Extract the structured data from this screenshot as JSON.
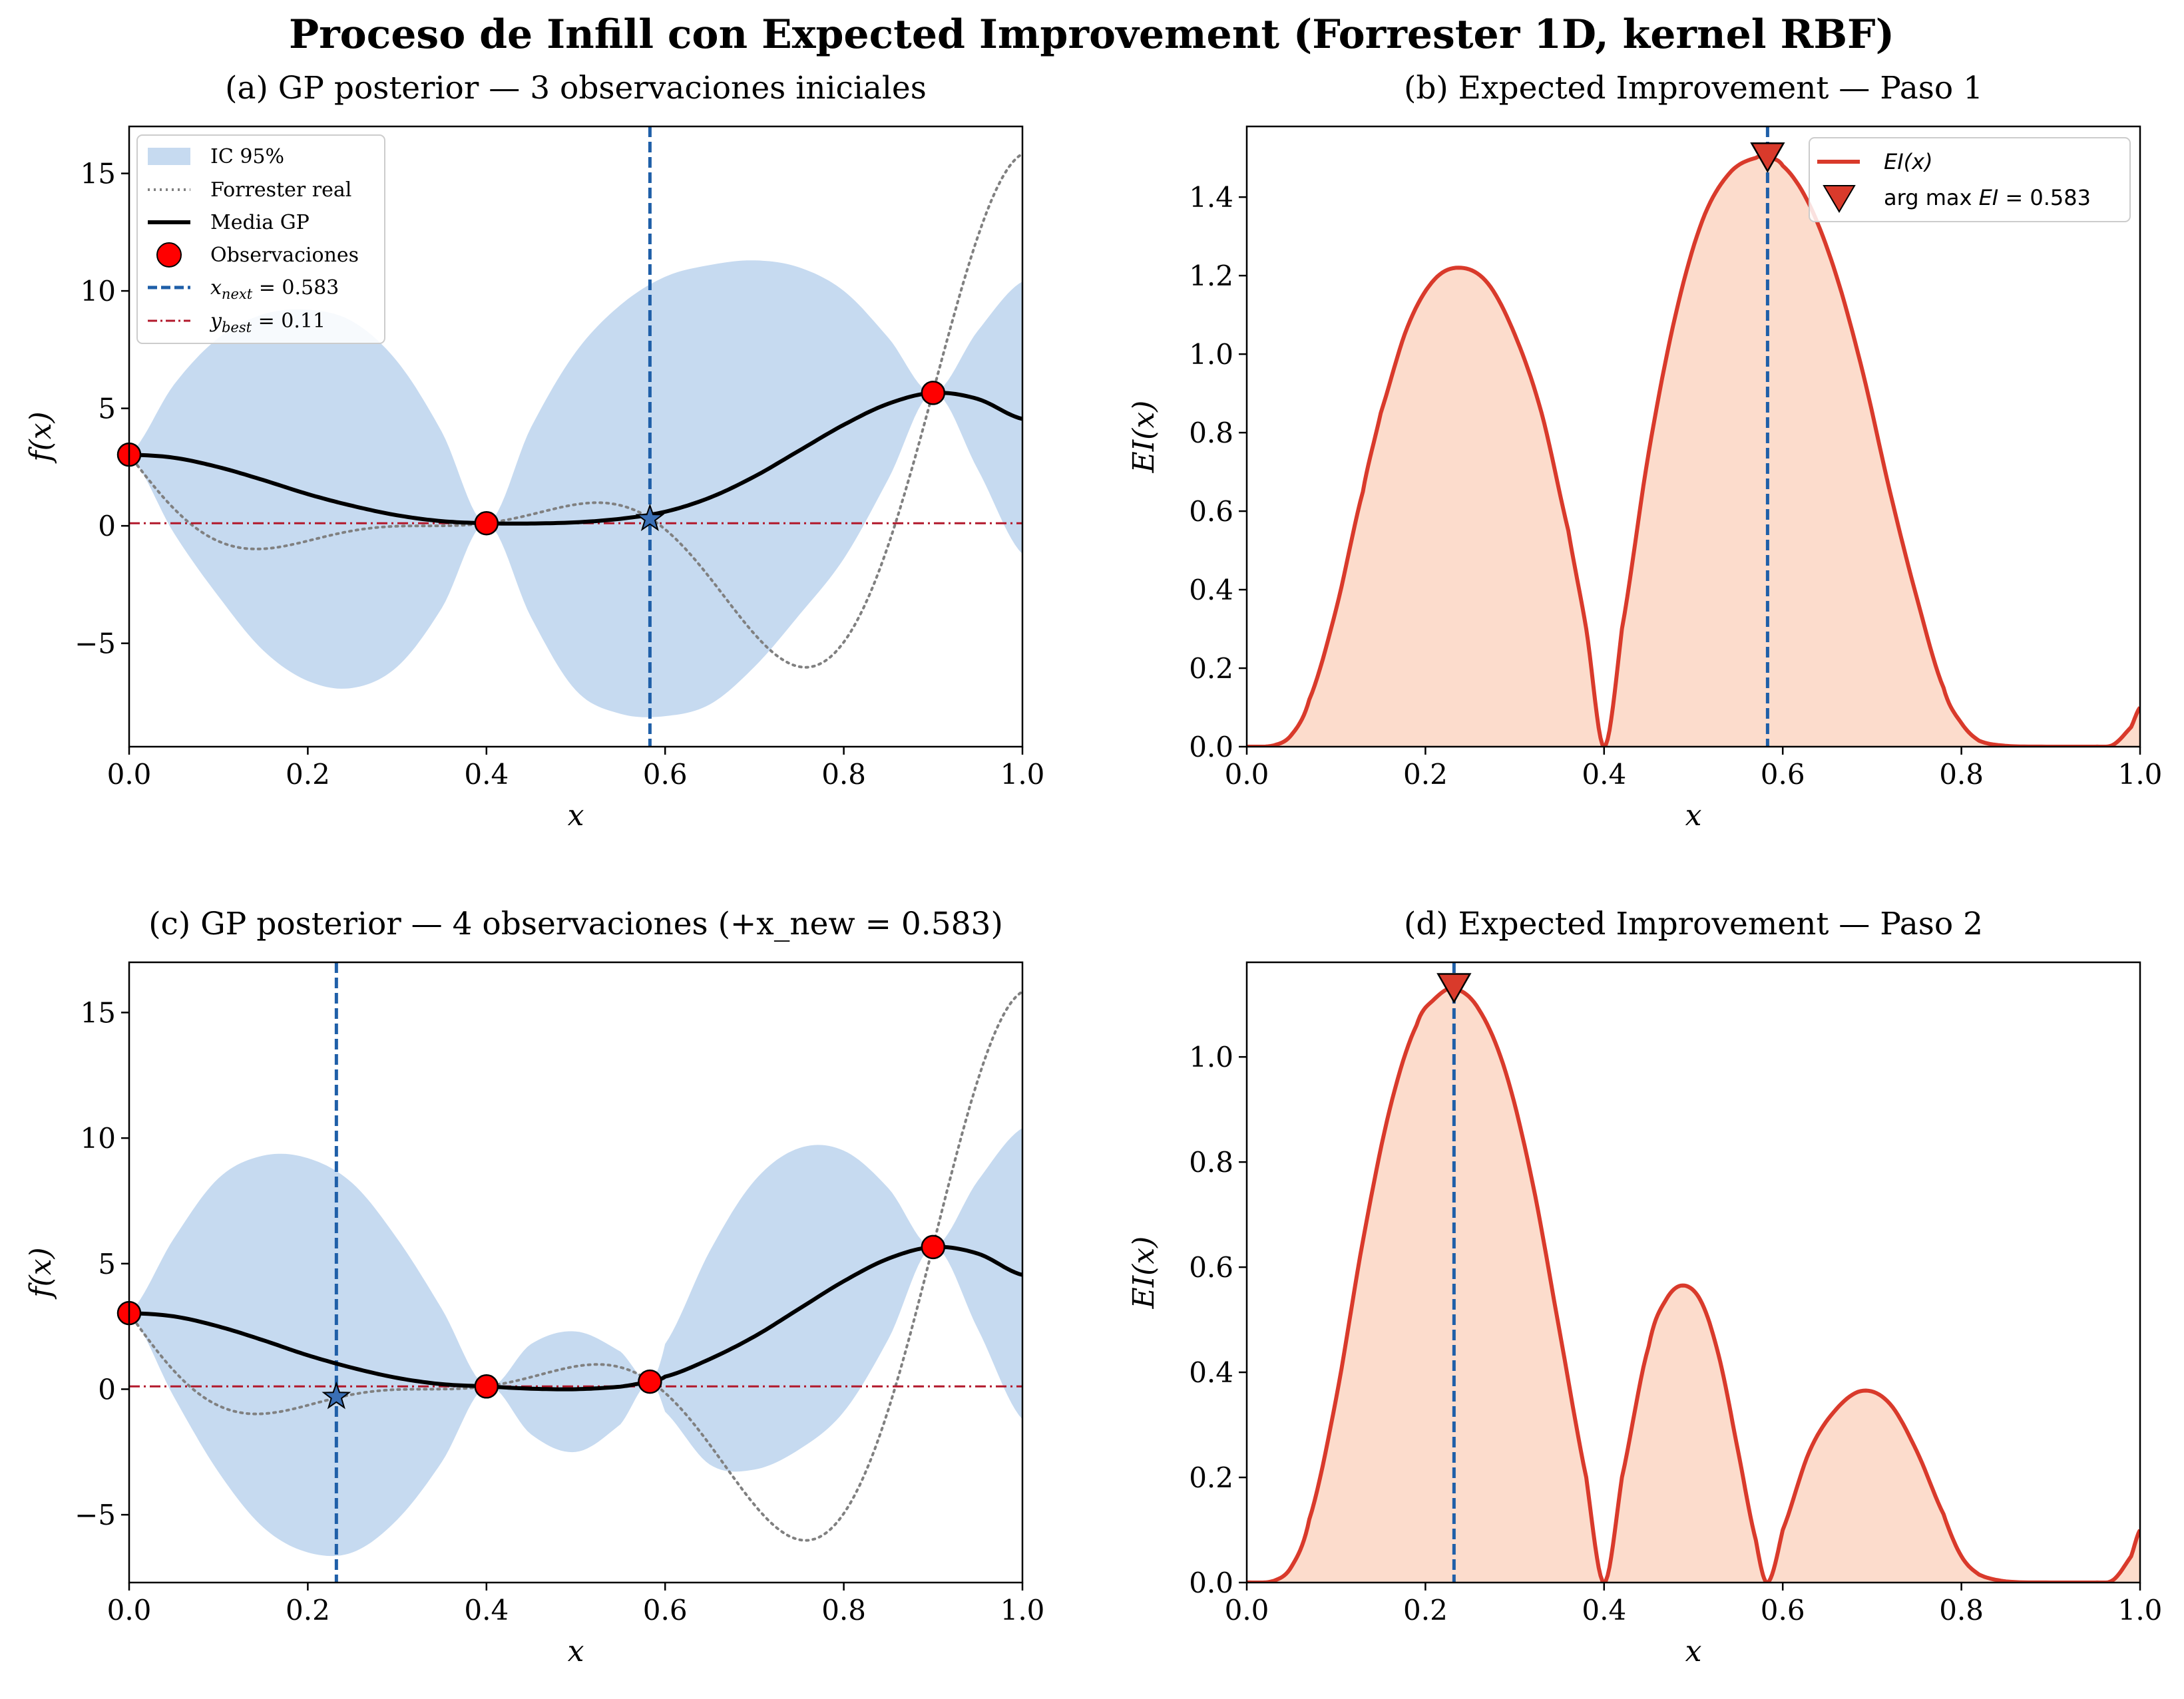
{
  "title": "Proceso de Infill con Expected Improvement (Forrester 1D, kernel RBF)",
  "colors": {
    "ci_fill": "#c6daf0",
    "true_curve": "#808080",
    "gp_mean": "#000000",
    "obs_fill": "#ff0000",
    "next_line": "#1f5fa8",
    "best_line": "#b2182b",
    "ei_line": "#d93a2b",
    "ei_fill": "#fcdccc"
  },
  "chart_data": [
    {
      "id": "a",
      "type": "line",
      "title": "(a) GP posterior  —  3 observaciones iniciales",
      "xlabel": "x",
      "ylabel": "f(x)",
      "xlim": [
        0,
        1
      ],
      "ylim": [
        -9.4,
        17
      ],
      "xticks": [
        "0.0",
        "0.2",
        "0.4",
        "0.6",
        "0.8",
        "1.0"
      ],
      "yticks": [
        -5,
        0,
        5,
        10,
        15
      ],
      "observations": {
        "x": [
          0.0,
          0.4,
          0.9
        ],
        "y": [
          3.03,
          0.11,
          5.66
        ]
      },
      "x_next": 0.583,
      "x_next_y": 0.3,
      "y_best": 0.11,
      "gp_mean": {
        "x": [
          0.0,
          0.05,
          0.1,
          0.15,
          0.2,
          0.25,
          0.3,
          0.35,
          0.4,
          0.45,
          0.5,
          0.55,
          0.6,
          0.65,
          0.7,
          0.75,
          0.8,
          0.85,
          0.9,
          0.95,
          1.0
        ],
        "y": [
          3.03,
          2.9,
          2.5,
          1.95,
          1.35,
          0.85,
          0.45,
          0.2,
          0.11,
          0.1,
          0.15,
          0.3,
          0.6,
          1.2,
          2.1,
          3.2,
          4.3,
          5.2,
          5.66,
          5.4,
          4.55
        ]
      },
      "ci_upper": {
        "x": [
          0.0,
          0.05,
          0.1,
          0.15,
          0.2,
          0.25,
          0.3,
          0.35,
          0.4,
          0.45,
          0.5,
          0.55,
          0.6,
          0.65,
          0.7,
          0.75,
          0.8,
          0.85,
          0.9,
          0.95,
          1.0
        ],
        "y": [
          3.03,
          6.0,
          8.0,
          9.0,
          9.2,
          8.7,
          7.0,
          4.0,
          0.11,
          4.2,
          7.4,
          9.4,
          10.6,
          11.1,
          11.3,
          11.0,
          10.0,
          8.0,
          5.66,
          8.3,
          10.4
        ]
      },
      "ci_lower": {
        "x": [
          0.0,
          0.05,
          0.1,
          0.15,
          0.2,
          0.25,
          0.3,
          0.35,
          0.4,
          0.45,
          0.5,
          0.55,
          0.6,
          0.65,
          0.7,
          0.75,
          0.8,
          0.85,
          0.9,
          0.95,
          1.0
        ],
        "y": [
          3.03,
          -0.3,
          -3.0,
          -5.3,
          -6.6,
          -6.9,
          -6.0,
          -3.5,
          0.11,
          -3.9,
          -7.0,
          -8.0,
          -8.1,
          -7.6,
          -6.0,
          -3.8,
          -1.4,
          2.0,
          5.66,
          2.4,
          -1.2
        ]
      },
      "legend": {
        "position": "upper-left",
        "entries": [
          "IC 95%",
          "Forrester real",
          "Media GP",
          "Observaciones",
          "x_next = 0.583",
          "y_best = 0.11"
        ]
      }
    },
    {
      "id": "b",
      "type": "area",
      "title": "(b) Expected Improvement  —  Paso 1",
      "xlabel": "x",
      "ylabel": "EI(x)",
      "xlim": [
        0,
        1
      ],
      "ylim": [
        0,
        1.58
      ],
      "xticks": [
        "0.0",
        "0.2",
        "0.4",
        "0.6",
        "0.8",
        "1.0"
      ],
      "yticks": [
        "0.0",
        "0.2",
        "0.4",
        "0.6",
        "0.8",
        "1.0",
        "1.2",
        "1.4"
      ],
      "argmax": {
        "x": 0.583,
        "y": 1.5
      },
      "ei": {
        "x": [
          0.0,
          0.03,
          0.05,
          0.07,
          0.1,
          0.13,
          0.15,
          0.18,
          0.21,
          0.24,
          0.27,
          0.3,
          0.33,
          0.36,
          0.38,
          0.4,
          0.42,
          0.45,
          0.48,
          0.51,
          0.54,
          0.57,
          0.583,
          0.6,
          0.63,
          0.66,
          0.69,
          0.72,
          0.75,
          0.78,
          0.8,
          0.82,
          0.85,
          0.9,
          0.95,
          0.97,
          0.99,
          1.0
        ],
        "y": [
          0.0,
          0.003,
          0.03,
          0.12,
          0.35,
          0.65,
          0.85,
          1.07,
          1.19,
          1.22,
          1.18,
          1.05,
          0.85,
          0.55,
          0.3,
          0.0,
          0.3,
          0.75,
          1.1,
          1.34,
          1.46,
          1.5,
          1.5,
          1.48,
          1.38,
          1.2,
          0.95,
          0.65,
          0.38,
          0.15,
          0.06,
          0.015,
          0.002,
          0.0,
          0.0,
          0.005,
          0.05,
          0.1
        ]
      },
      "legend": {
        "position": "upper-right",
        "entries": [
          "EI(x)",
          "arg max EI = 0.583"
        ]
      }
    },
    {
      "id": "c",
      "type": "line",
      "title": "(c) GP posterior  —  4 observaciones (+x_new = 0.583)",
      "xlabel": "x",
      "ylabel": "f(x)",
      "xlim": [
        0,
        1
      ],
      "ylim": [
        -7.7,
        17
      ],
      "xticks": [
        "0.0",
        "0.2",
        "0.4",
        "0.6",
        "0.8",
        "1.0"
      ],
      "yticks": [
        -5,
        0,
        5,
        10,
        15
      ],
      "observations": {
        "x": [
          0.0,
          0.4,
          0.583,
          0.9
        ],
        "y": [
          3.03,
          0.11,
          0.3,
          5.66
        ]
      },
      "x_next": 0.232,
      "x_next_y": -0.3,
      "y_best": 0.11,
      "gp_mean": {
        "x": [
          0.0,
          0.05,
          0.1,
          0.15,
          0.2,
          0.25,
          0.3,
          0.35,
          0.4,
          0.45,
          0.5,
          0.55,
          0.583,
          0.6,
          0.65,
          0.7,
          0.75,
          0.8,
          0.85,
          0.9,
          0.95,
          1.0
        ],
        "y": [
          3.03,
          2.9,
          2.5,
          1.95,
          1.35,
          0.85,
          0.45,
          0.2,
          0.11,
          0.02,
          0.0,
          0.1,
          0.3,
          0.5,
          1.2,
          2.1,
          3.2,
          4.3,
          5.2,
          5.66,
          5.4,
          4.55
        ]
      },
      "ci_upper": {
        "x": [
          0.0,
          0.05,
          0.1,
          0.15,
          0.2,
          0.25,
          0.3,
          0.35,
          0.4,
          0.45,
          0.5,
          0.55,
          0.583,
          0.6,
          0.65,
          0.7,
          0.75,
          0.8,
          0.85,
          0.9,
          0.95,
          1.0
        ],
        "y": [
          3.03,
          6.0,
          8.4,
          9.3,
          9.2,
          8.2,
          6.0,
          3.2,
          0.11,
          1.8,
          2.3,
          1.5,
          0.3,
          1.8,
          5.5,
          8.3,
          9.6,
          9.5,
          8.0,
          5.66,
          8.3,
          10.4
        ]
      },
      "ci_lower": {
        "x": [
          0.0,
          0.05,
          0.1,
          0.15,
          0.2,
          0.25,
          0.3,
          0.35,
          0.4,
          0.45,
          0.5,
          0.55,
          0.583,
          0.6,
          0.65,
          0.7,
          0.75,
          0.8,
          0.85,
          0.9,
          0.95,
          1.0
        ],
        "y": [
          3.03,
          -0.3,
          -3.3,
          -5.5,
          -6.5,
          -6.5,
          -5.2,
          -2.9,
          0.11,
          -1.8,
          -2.5,
          -1.4,
          0.3,
          -0.9,
          -3.0,
          -3.2,
          -2.4,
          -0.9,
          2.0,
          5.66,
          2.4,
          -1.2
        ]
      }
    },
    {
      "id": "d",
      "type": "area",
      "title": "(d) Expected Improvement  —  Paso 2",
      "xlabel": "x",
      "ylabel": "EI(x)",
      "xlim": [
        0,
        1
      ],
      "ylim": [
        0,
        1.18
      ],
      "xticks": [
        "0.0",
        "0.2",
        "0.4",
        "0.6",
        "0.8",
        "1.0"
      ],
      "yticks": [
        "0.0",
        "0.2",
        "0.4",
        "0.6",
        "0.8",
        "1.0"
      ],
      "argmax": {
        "x": 0.232,
        "y": 1.13
      },
      "ei": {
        "x": [
          0.0,
          0.03,
          0.05,
          0.07,
          0.1,
          0.13,
          0.16,
          0.19,
          0.21,
          0.232,
          0.26,
          0.29,
          0.32,
          0.35,
          0.38,
          0.4,
          0.42,
          0.45,
          0.47,
          0.49,
          0.51,
          0.53,
          0.55,
          0.57,
          0.583,
          0.6,
          0.63,
          0.66,
          0.69,
          0.72,
          0.75,
          0.78,
          0.8,
          0.82,
          0.85,
          0.9,
          0.95,
          0.97,
          0.99,
          1.0
        ],
        "y": [
          0.0,
          0.003,
          0.03,
          0.12,
          0.35,
          0.65,
          0.9,
          1.06,
          1.11,
          1.13,
          1.09,
          0.97,
          0.76,
          0.48,
          0.2,
          0.0,
          0.2,
          0.45,
          0.54,
          0.565,
          0.53,
          0.42,
          0.25,
          0.08,
          0.0,
          0.1,
          0.25,
          0.33,
          0.365,
          0.34,
          0.25,
          0.13,
          0.05,
          0.015,
          0.002,
          0.0,
          0.0,
          0.005,
          0.05,
          0.1
        ]
      }
    }
  ]
}
